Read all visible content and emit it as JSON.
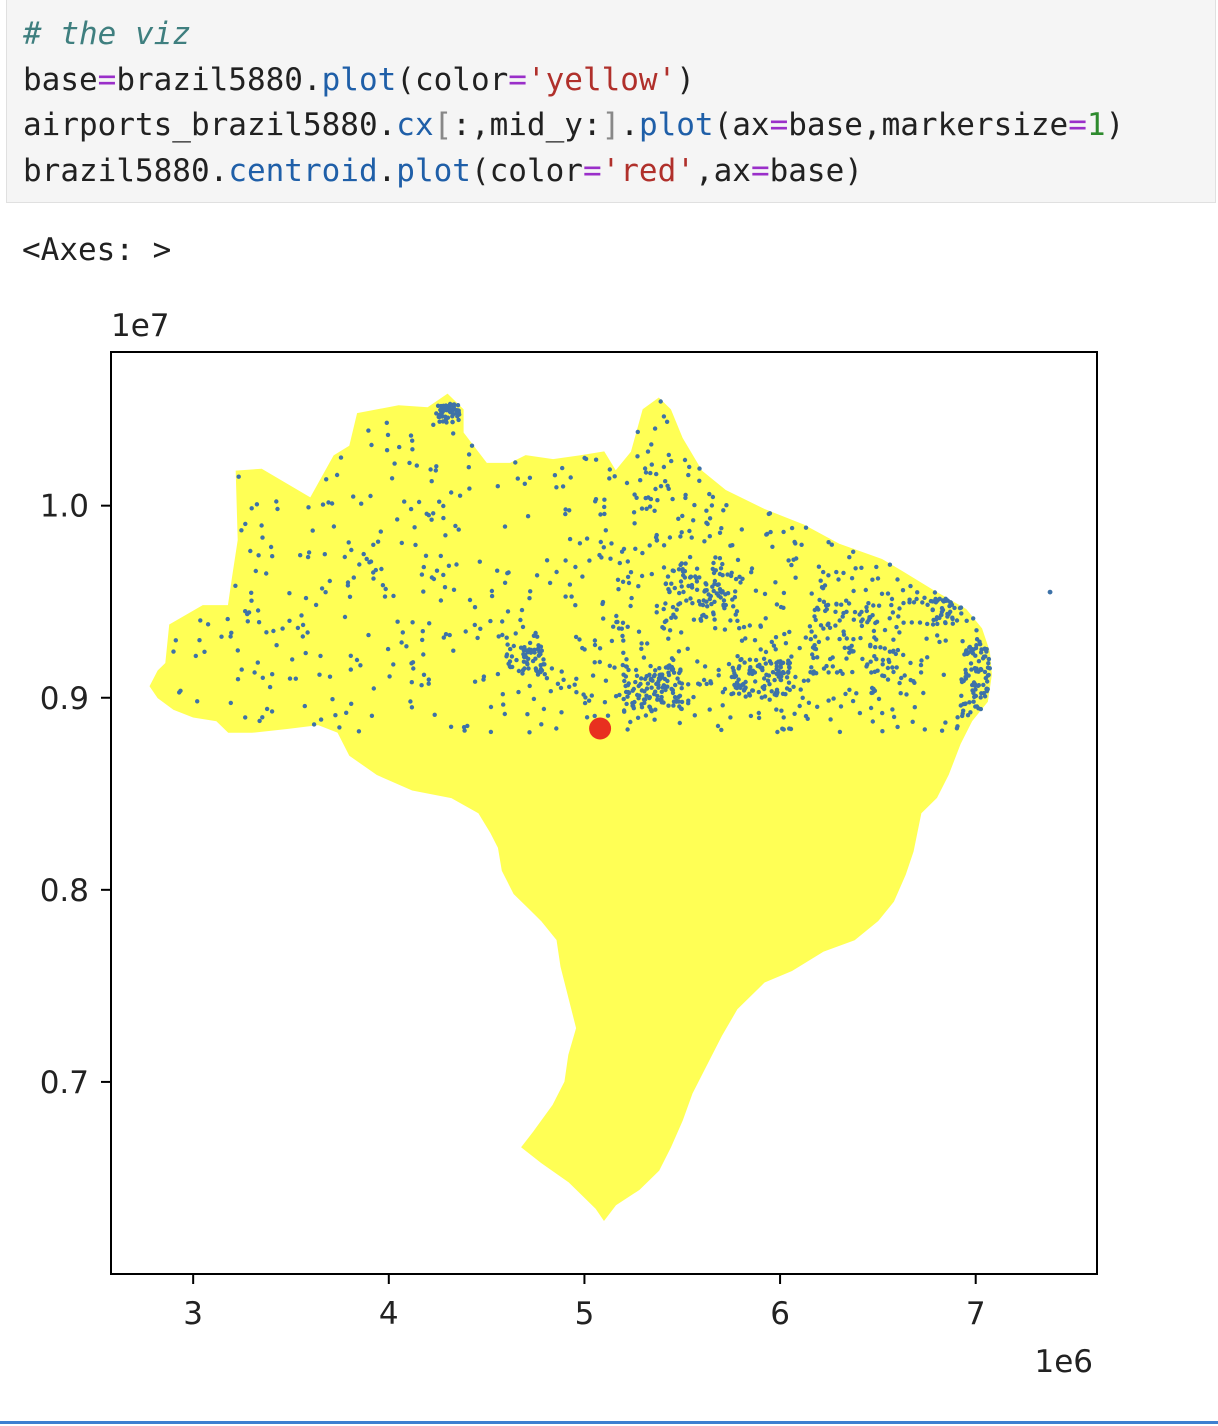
{
  "code_cell": {
    "lines": [
      [
        {
          "t": "comment",
          "v": "# the viz"
        }
      ],
      [
        {
          "t": "plain",
          "v": "base"
        },
        {
          "t": "eq",
          "v": "="
        },
        {
          "t": "plain",
          "v": "brazil5880."
        },
        {
          "t": "fn",
          "v": "plot"
        },
        {
          "t": "plain",
          "v": "(color"
        },
        {
          "t": "eq",
          "v": "="
        },
        {
          "t": "str",
          "v": "'yellow'"
        },
        {
          "t": "plain",
          "v": ")"
        }
      ],
      [
        {
          "t": "plain",
          "v": "airports_brazil5880."
        },
        {
          "t": "fn",
          "v": "cx"
        },
        {
          "t": "br",
          "v": "["
        },
        {
          "t": "plain",
          "v": ":,mid_y:"
        },
        {
          "t": "br",
          "v": "]"
        },
        {
          "t": "plain",
          "v": "."
        },
        {
          "t": "fn",
          "v": "plot"
        },
        {
          "t": "plain",
          "v": "(ax"
        },
        {
          "t": "eq",
          "v": "="
        },
        {
          "t": "plain",
          "v": "base,markersize"
        },
        {
          "t": "eq",
          "v": "="
        },
        {
          "t": "num",
          "v": "1"
        },
        {
          "t": "plain",
          "v": ")"
        }
      ],
      [
        {
          "t": "plain",
          "v": "brazil5880."
        },
        {
          "t": "fn",
          "v": "centroid"
        },
        {
          "t": "plain",
          "v": "."
        },
        {
          "t": "fn",
          "v": "plot"
        },
        {
          "t": "plain",
          "v": "(color"
        },
        {
          "t": "eq",
          "v": "="
        },
        {
          "t": "str",
          "v": "'red'"
        },
        {
          "t": "plain",
          "v": ",ax"
        },
        {
          "t": "eq",
          "v": "="
        },
        {
          "t": "plain",
          "v": "base)"
        }
      ]
    ]
  },
  "output": {
    "text": "<Axes: >"
  },
  "colors": {
    "country_fill": "#ffff55",
    "airport_marker": "#3d72a8",
    "centroid_marker": "#e8301f"
  },
  "chart_data": {
    "type": "scatter",
    "x_multiplier_label": "1e6",
    "y_multiplier_label": "1e7",
    "xlim": [
      2.58,
      7.62
    ],
    "ylim": [
      6.0,
      10.8
    ],
    "xticks": [
      3,
      4,
      5,
      6,
      7
    ],
    "xtick_labels": [
      "3",
      "4",
      "5",
      "6",
      "7"
    ],
    "yticks": [
      7.0,
      8.0,
      9.0,
      10.0
    ],
    "ytick_labels": [
      "0.7",
      "0.8",
      "0.9",
      "1.0"
    ],
    "grid": false,
    "country_outline": [
      [
        2.82,
        9.14
      ],
      [
        2.86,
        9.18
      ],
      [
        2.88,
        9.38
      ],
      [
        3.05,
        9.48
      ],
      [
        3.18,
        9.48
      ],
      [
        3.2,
        9.62
      ],
      [
        3.23,
        9.82
      ],
      [
        3.22,
        10.18
      ],
      [
        3.35,
        10.19
      ],
      [
        3.6,
        10.04
      ],
      [
        3.72,
        10.26
      ],
      [
        3.8,
        10.31
      ],
      [
        3.84,
        10.48
      ],
      [
        4.05,
        10.52
      ],
      [
        4.2,
        10.51
      ],
      [
        4.3,
        10.58
      ],
      [
        4.38,
        10.5
      ],
      [
        4.38,
        10.38
      ],
      [
        4.5,
        10.22
      ],
      [
        4.62,
        10.22
      ],
      [
        4.7,
        10.26
      ],
      [
        4.84,
        10.24
      ],
      [
        4.98,
        10.26
      ],
      [
        5.1,
        10.28
      ],
      [
        5.16,
        10.18
      ],
      [
        5.24,
        10.28
      ],
      [
        5.3,
        10.5
      ],
      [
        5.38,
        10.56
      ],
      [
        5.44,
        10.5
      ],
      [
        5.5,
        10.35
      ],
      [
        5.6,
        10.18
      ],
      [
        5.72,
        10.08
      ],
      [
        5.92,
        9.98
      ],
      [
        6.12,
        9.9
      ],
      [
        6.3,
        9.8
      ],
      [
        6.52,
        9.72
      ],
      [
        6.62,
        9.66
      ],
      [
        6.78,
        9.56
      ],
      [
        6.95,
        9.46
      ],
      [
        7.03,
        9.36
      ],
      [
        7.07,
        9.24
      ],
      [
        7.08,
        9.12
      ],
      [
        7.06,
        8.98
      ],
      [
        6.98,
        8.88
      ],
      [
        6.92,
        8.76
      ],
      [
        6.86,
        8.6
      ],
      [
        6.8,
        8.48
      ],
      [
        6.72,
        8.4
      ],
      [
        6.7,
        8.3
      ],
      [
        6.68,
        8.2
      ],
      [
        6.64,
        8.08
      ],
      [
        6.58,
        7.94
      ],
      [
        6.5,
        7.84
      ],
      [
        6.38,
        7.74
      ],
      [
        6.22,
        7.68
      ],
      [
        6.06,
        7.58
      ],
      [
        5.92,
        7.52
      ],
      [
        5.78,
        7.38
      ],
      [
        5.7,
        7.24
      ],
      [
        5.62,
        7.08
      ],
      [
        5.55,
        6.94
      ],
      [
        5.5,
        6.8
      ],
      [
        5.44,
        6.66
      ],
      [
        5.38,
        6.54
      ],
      [
        5.28,
        6.44
      ],
      [
        5.16,
        6.36
      ],
      [
        5.1,
        6.28
      ],
      [
        5.06,
        6.34
      ],
      [
        4.92,
        6.48
      ],
      [
        4.78,
        6.58
      ],
      [
        4.68,
        6.66
      ],
      [
        4.74,
        6.74
      ],
      [
        4.84,
        6.88
      ],
      [
        4.9,
        7.0
      ],
      [
        4.92,
        7.14
      ],
      [
        4.96,
        7.28
      ],
      [
        4.92,
        7.44
      ],
      [
        4.88,
        7.6
      ],
      [
        4.86,
        7.74
      ],
      [
        4.78,
        7.84
      ],
      [
        4.72,
        7.9
      ],
      [
        4.64,
        7.98
      ],
      [
        4.58,
        8.1
      ],
      [
        4.56,
        8.22
      ],
      [
        4.52,
        8.3
      ],
      [
        4.46,
        8.4
      ],
      [
        4.32,
        8.48
      ],
      [
        4.12,
        8.52
      ],
      [
        3.94,
        8.6
      ],
      [
        3.8,
        8.7
      ],
      [
        3.74,
        8.82
      ],
      [
        3.64,
        8.86
      ],
      [
        3.48,
        8.84
      ],
      [
        3.3,
        8.82
      ],
      [
        3.18,
        8.82
      ],
      [
        3.12,
        8.88
      ],
      [
        3.0,
        8.9
      ],
      [
        2.9,
        8.94
      ],
      [
        2.82,
        9.0
      ],
      [
        2.78,
        9.06
      ]
    ],
    "airports": {
      "count": 1400,
      "x_range": [
        2.88,
        7.1
      ],
      "y_range": [
        8.82,
        10.56
      ],
      "outlier": [
        7.38,
        9.55
      ]
    },
    "centroid": [
      5.08,
      8.84
    ]
  }
}
